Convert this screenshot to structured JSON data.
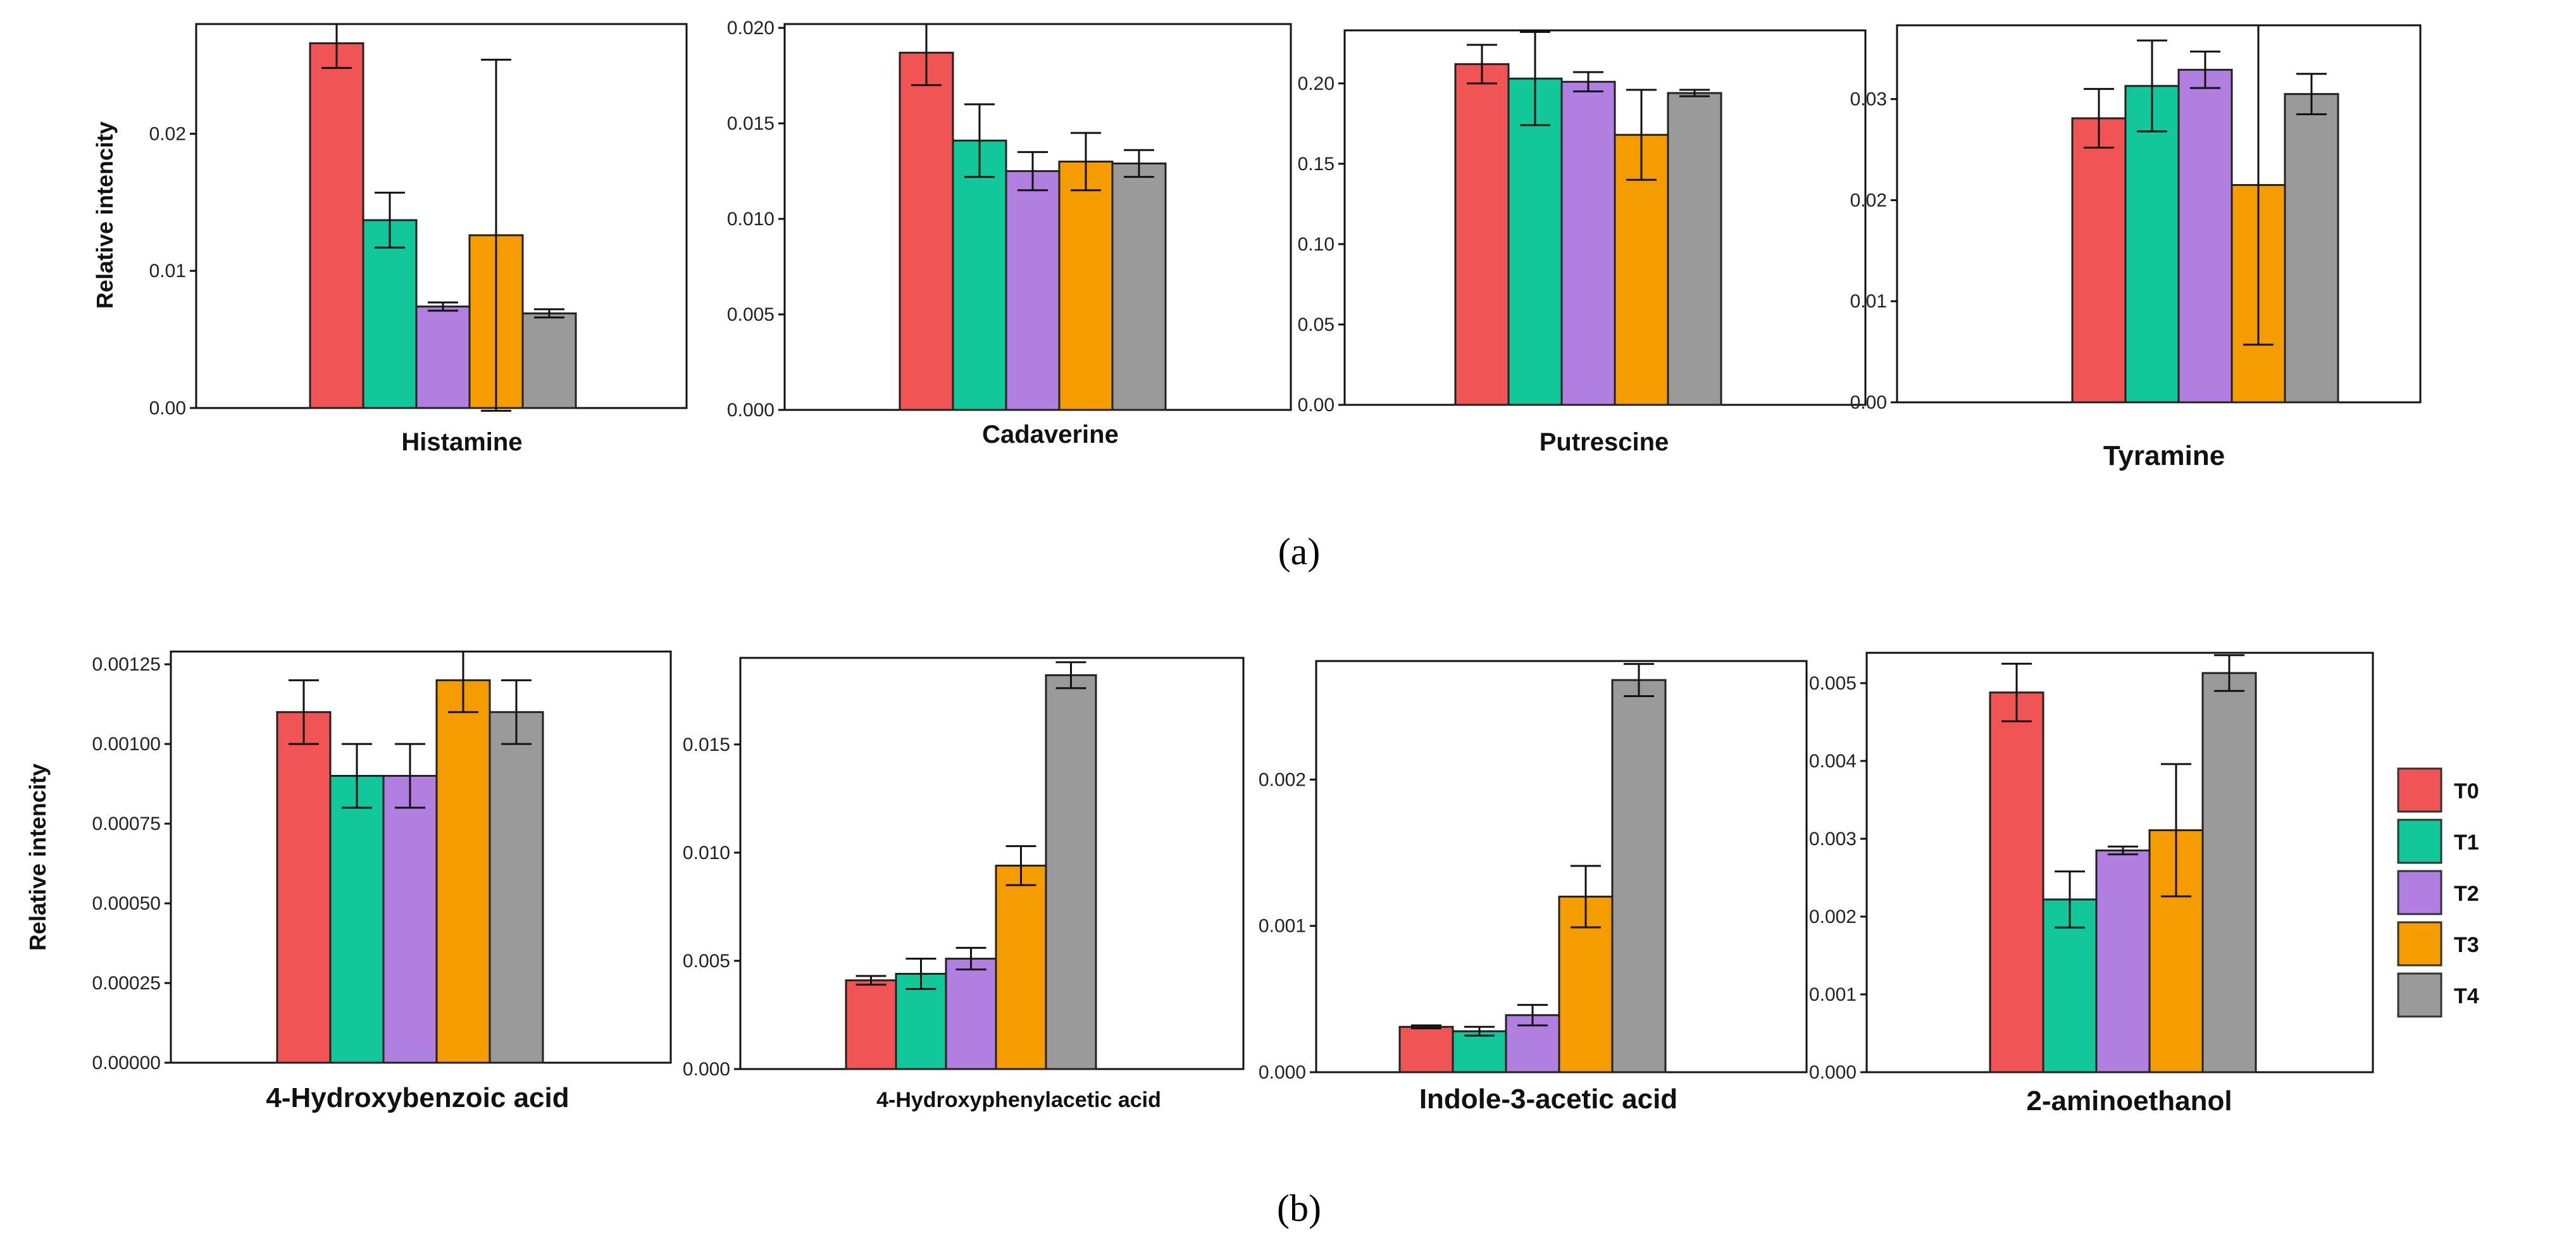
{
  "figure": {
    "panel_labels": [
      "(a)",
      "(b)"
    ]
  },
  "legend": {
    "items": [
      {
        "label": "T0",
        "color": "#F05454"
      },
      {
        "label": "T1",
        "color": "#12C79A"
      },
      {
        "label": "T2",
        "color": "#B07FE0"
      },
      {
        "label": "T3",
        "color": "#F59C00"
      },
      {
        "label": "T4",
        "color": "#9A9A9A"
      }
    ]
  },
  "chart_data": [
    {
      "type": "bar",
      "title": "Histamine",
      "ylabel": "Relative intencity",
      "categories": [
        "T0",
        "T1",
        "T2",
        "T3",
        "T4"
      ],
      "values": [
        0.0266,
        0.0137,
        0.0074,
        0.0126,
        0.0069
      ],
      "errors": [
        0.0018,
        0.002,
        0.0003,
        0.0128,
        0.0003
      ],
      "ylim": [
        0,
        0.028
      ],
      "yticks": [
        "0.00",
        "0.01",
        "0.02"
      ],
      "ytick_values": [
        0,
        0.01,
        0.02
      ]
    },
    {
      "type": "bar",
      "title": "Cadaverine",
      "ylabel": "",
      "categories": [
        "T0",
        "T1",
        "T2",
        "T3",
        "T4"
      ],
      "values": [
        0.0187,
        0.0141,
        0.0125,
        0.013,
        0.0129
      ],
      "errors": [
        0.0017,
        0.0019,
        0.001,
        0.0015,
        0.0007
      ],
      "ylim": [
        0,
        0.0202
      ],
      "yticks": [
        "0.000",
        "0.005",
        "0.010",
        "0.015",
        "0.020"
      ],
      "ytick_values": [
        0,
        0.005,
        0.01,
        0.015,
        0.02
      ]
    },
    {
      "type": "bar",
      "title": "Putrescine",
      "ylabel": "",
      "categories": [
        "T0",
        "T1",
        "T2",
        "T3",
        "T4"
      ],
      "values": [
        0.212,
        0.203,
        0.201,
        0.168,
        0.194
      ],
      "errors": [
        0.012,
        0.029,
        0.006,
        0.028,
        0.002
      ],
      "ylim": [
        0,
        0.233
      ],
      "yticks": [
        "0.00",
        "0.05",
        "0.10",
        "0.15",
        "0.20"
      ],
      "ytick_values": [
        0,
        0.05,
        0.1,
        0.15,
        0.2
      ]
    },
    {
      "type": "bar",
      "title": "Tyramine",
      "ylabel": "",
      "categories": [
        "T0",
        "T1",
        "T2",
        "T3",
        "T4"
      ],
      "values": [
        0.0281,
        0.0313,
        0.0329,
        0.0215,
        0.0305
      ],
      "errors": [
        0.0029,
        0.0045,
        0.0018,
        0.0158,
        0.002
      ],
      "ylim": [
        0,
        0.0373
      ],
      "yticks": [
        "0.00",
        "0.01",
        "0.02",
        "0.03"
      ],
      "ytick_values": [
        0,
        0.01,
        0.02,
        0.03
      ]
    },
    {
      "type": "bar",
      "title": "4-Hydroxybenzoic acid",
      "ylabel": "Relative intencity",
      "categories": [
        "T0",
        "T1",
        "T2",
        "T3",
        "T4"
      ],
      "values": [
        0.0011,
        0.0009,
        0.0009,
        0.0012,
        0.0011
      ],
      "errors": [
        0.0001,
        0.0001,
        0.0001,
        0.0001,
        0.0001
      ],
      "ylim": [
        0,
        0.00129
      ],
      "yticks": [
        "0.00000",
        "0.00025",
        "0.00050",
        "0.00075",
        "0.00100",
        "0.00125"
      ],
      "ytick_values": [
        0,
        0.00025,
        0.0005,
        0.00075,
        0.001,
        0.00125
      ]
    },
    {
      "type": "bar",
      "title": "4-Hydroxyphenylacetic acid",
      "ylabel": "",
      "categories": [
        "T0",
        "T1",
        "T2",
        "T3",
        "T4"
      ],
      "values": [
        0.0041,
        0.0044,
        0.0051,
        0.0094,
        0.0182
      ],
      "errors": [
        0.0002,
        0.0007,
        0.0005,
        0.0009,
        0.0006
      ],
      "ylim": [
        0,
        0.019
      ],
      "yticks": [
        "0.000",
        "0.005",
        "0.010",
        "0.015"
      ],
      "ytick_values": [
        0,
        0.005,
        0.01,
        0.015
      ]
    },
    {
      "type": "bar",
      "title": "Indole-3-acetic acid",
      "ylabel": "",
      "categories": [
        "T0",
        "T1",
        "T2",
        "T3",
        "T4"
      ],
      "values": [
        0.00031,
        0.00028,
        0.00039,
        0.0012,
        0.00268
      ],
      "errors": [
        1e-05,
        3e-05,
        7e-05,
        0.00021,
        0.00011
      ],
      "ylim": [
        0,
        0.00281
      ],
      "yticks": [
        "0.000",
        "0.001",
        "0.002"
      ],
      "ytick_values": [
        0,
        0.001,
        0.002
      ]
    },
    {
      "type": "bar",
      "title": "2-aminoethanol",
      "ylabel": "",
      "categories": [
        "T0",
        "T1",
        "T2",
        "T3",
        "T4"
      ],
      "values": [
        0.00488,
        0.00222,
        0.00285,
        0.00311,
        0.00513
      ],
      "errors": [
        0.00037,
        0.00036,
        5e-05,
        0.00085,
        0.00023
      ],
      "ylim": [
        0,
        0.00539
      ],
      "yticks": [
        "0.000",
        "0.001",
        "0.002",
        "0.003",
        "0.004",
        "0.005"
      ],
      "ytick_values": [
        0,
        0.001,
        0.002,
        0.003,
        0.004,
        0.005
      ]
    }
  ]
}
